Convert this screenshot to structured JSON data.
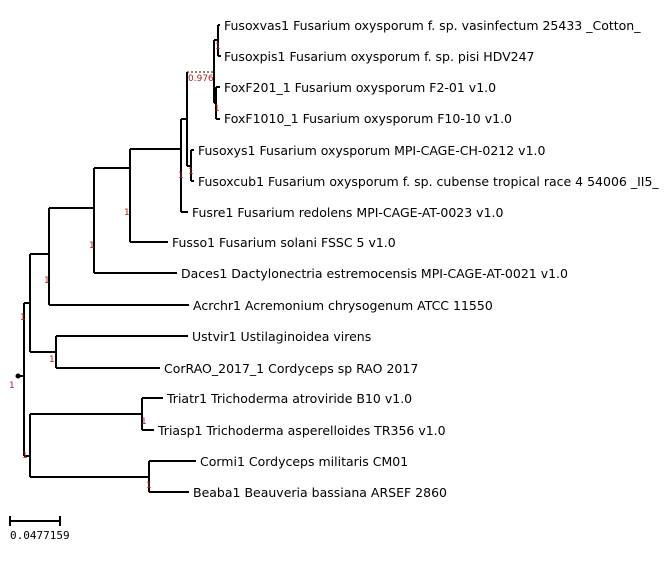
{
  "tree": {
    "leaves": [
      "Fusoxvas1 Fusarium oxysporum f. sp. vasinfectum 25433 _Cotton_",
      "Fusoxpis1 Fusarium oxysporum f. sp. pisi HDV247",
      "FoxF201_1 Fusarium oxysporum F2-01 v1.0",
      "FoxF1010_1 Fusarium oxysporum F10-10 v1.0",
      "Fusoxys1 Fusarium oxysporum MPI-CAGE-CH-0212 v1.0",
      "Fusoxcub1 Fusarium oxysporum f. sp. cubense tropical race 4 54006 _II5_",
      "Fusre1 Fusarium redolens MPI-CAGE-AT-0023 v1.0",
      "Fusso1 Fusarium solani FSSC 5 v1.0",
      "Daces1 Dactylonectria estremocensis MPI-CAGE-AT-0021 v1.0",
      "Acrchr1 Acremonium chrysogenum ATCC 11550",
      "Ustvir1 Ustilaginoidea virens",
      "CorRAO_2017_1 Cordyceps sp RAO 2017",
      "Triatr1 Trichoderma atroviride B10 v1.0",
      "Triasp1 Trichoderma asperelloides TR356 v1.0",
      "Cormi1 Cordyceps militaris CM01",
      "Beaba1 Beauveria bassiana ARSEF 2860"
    ],
    "supports": [
      "1",
      "1",
      "0.976",
      "1",
      "1",
      "1",
      "1",
      "1",
      "1",
      "1",
      "1",
      "1",
      "1",
      "1"
    ]
  },
  "scale_bar": {
    "label": "0.0477159"
  }
}
